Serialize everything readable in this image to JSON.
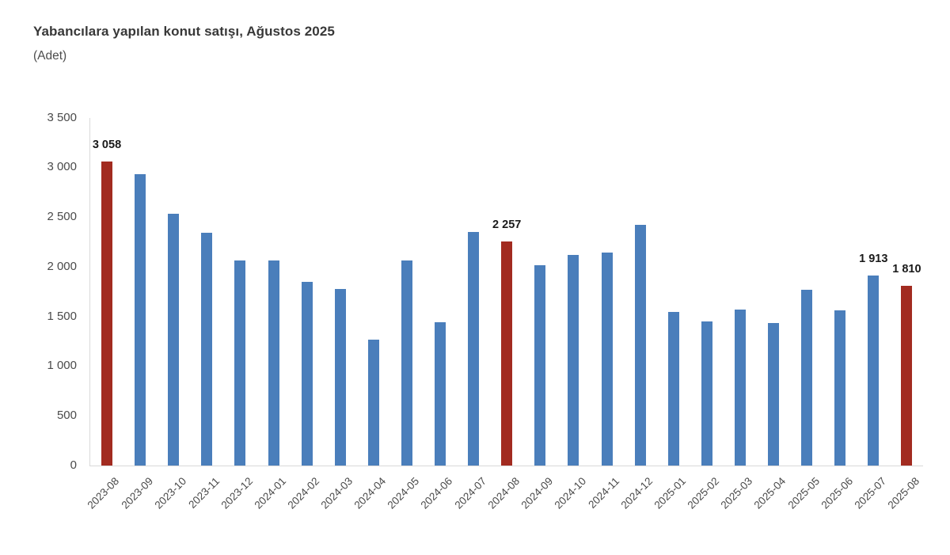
{
  "header": {
    "title": "Yabancılara yapılan konut satışı, Ağustos 2025",
    "subtitle": "(Adet)"
  },
  "chart_data": {
    "type": "bar",
    "title": "Yabancılara yapılan konut satışı, Ağustos 2025",
    "unit_label": "(Adet)",
    "categories": [
      "2023-08",
      "2023-09",
      "2023-10",
      "2023-11",
      "2023-12",
      "2024-01",
      "2024-02",
      "2024-03",
      "2024-04",
      "2024-05",
      "2024-06",
      "2024-07",
      "2024-08",
      "2024-09",
      "2024-10",
      "2024-11",
      "2024-12",
      "2025-01",
      "2025-02",
      "2025-03",
      "2025-04",
      "2025-05",
      "2025-06",
      "2025-07",
      "2025-08"
    ],
    "values": [
      3058,
      2930,
      2535,
      2340,
      2060,
      2060,
      1845,
      1775,
      1270,
      2060,
      1440,
      2350,
      2257,
      2015,
      2120,
      2145,
      2420,
      1545,
      1450,
      1570,
      1435,
      1765,
      1560,
      1913,
      1810
    ],
    "highlighted_indices": [
      0,
      12,
      24
    ],
    "value_labels": {
      "0": "3 058",
      "12": "2 257",
      "23": "1 913",
      "24": "1 810"
    },
    "ylim": [
      0,
      3500
    ],
    "ytick_interval": 500,
    "ytick_labels": [
      "0",
      "500",
      "1 000",
      "1 500",
      "2 000",
      "2 500",
      "3 000",
      "3 500"
    ],
    "grid": false,
    "legend_position": "none",
    "x_label_rotation_deg": -45,
    "colors": {
      "bar": "#4A7EBB",
      "highlight": "#A22B20",
      "axis_line": "#D9D9D9",
      "tick_text": "#4A4A4A",
      "value_label_text": "#1A1A1A",
      "title_text": "#383838",
      "background": "#FFFFFF"
    }
  }
}
